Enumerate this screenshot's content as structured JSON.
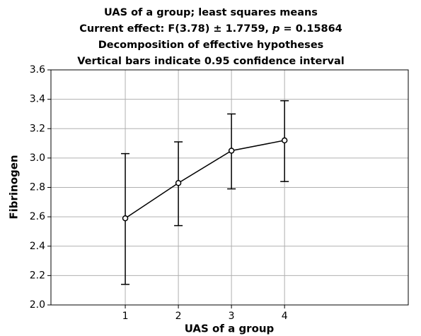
{
  "chart_data": {
    "type": "line",
    "title_lines": [
      "UAS of a group; least squares means",
      [
        "Current effect: F(3.78) ± 1.7759, ",
        "p",
        " = 0.15864"
      ],
      "Decomposition of effective hypotheses",
      "Vertical bars indicate 0.95 confidence interval"
    ],
    "xlabel": "UAS of a group",
    "ylabel": "Fibrinogen",
    "x": [
      1,
      2,
      3,
      4
    ],
    "values": [
      2.59,
      2.83,
      3.05,
      3.12
    ],
    "lower": [
      2.14,
      2.54,
      2.79,
      2.84
    ],
    "upper": [
      3.03,
      3.11,
      3.3,
      3.39
    ],
    "color": "#000000",
    "xlim": [
      -0.4,
      6.33
    ],
    "xticks": [
      1,
      2,
      3,
      4
    ],
    "ylim": [
      2.0,
      3.6
    ],
    "yticks": [
      {
        "value": 2.0,
        "label": "2.0"
      },
      2.2,
      2.4,
      2.6,
      2.8,
      {
        "value": 3.0,
        "label": "3.0"
      },
      3.2,
      3.4,
      3.6
    ],
    "grid": true
  }
}
